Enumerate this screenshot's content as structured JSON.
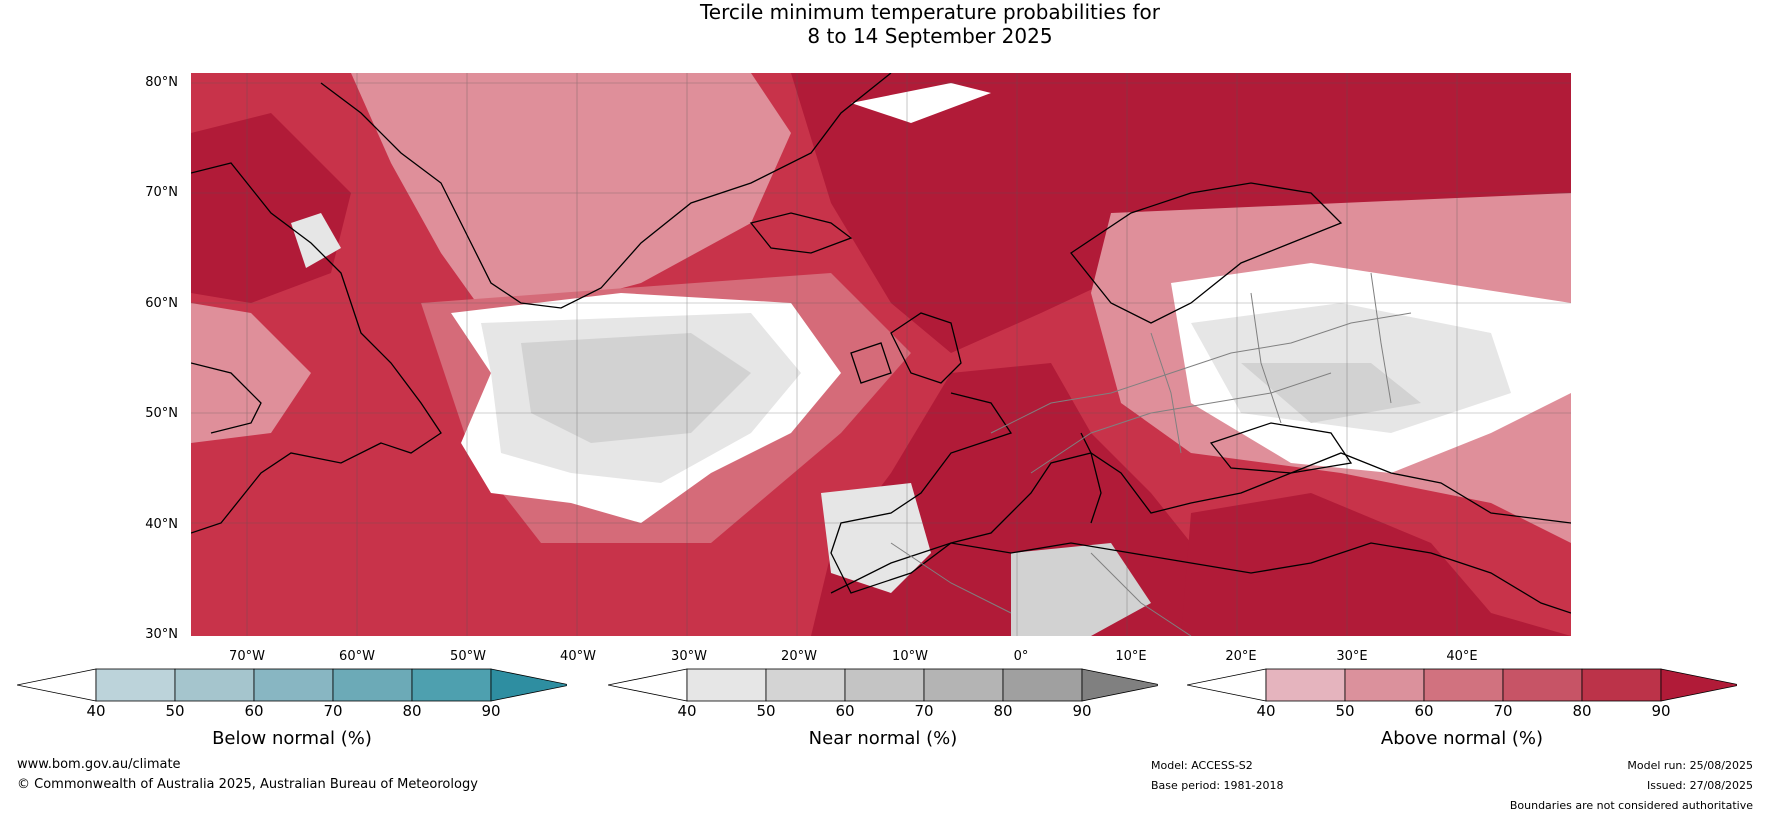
{
  "title": {
    "line1": "Tercile minimum temperature probabilities for",
    "line2": "8 to 14 September 2025"
  },
  "map": {
    "lat_labels": [
      "80°N",
      "70°N",
      "60°N",
      "50°N",
      "40°N",
      "30°N"
    ],
    "lon_labels": [
      "70°W",
      "60°W",
      "50°W",
      "40°W",
      "30°W",
      "20°W",
      "10°W",
      "0°",
      "10°E",
      "20°E",
      "30°E",
      "40°E"
    ],
    "colors": {
      "above_90": "#b11b38",
      "above_80": "#c8334a",
      "above_70": "#d56b79",
      "above_60": "#df8f9a",
      "near_50": "#d2d2d2",
      "near_40": "#e6e6e6",
      "white": "#ffffff",
      "land_grey": "#b4b4b4",
      "coast": "#000000",
      "border": "#808080"
    }
  },
  "colorbars": [
    {
      "name": "below",
      "ticks": [
        "40",
        "50",
        "60",
        "70",
        "80",
        "90"
      ],
      "colors": [
        "#ffffff",
        "#bcd3da",
        "#a5c5cd",
        "#88b6c2",
        "#6caab7",
        "#4ea0af",
        "#2e8ea1"
      ],
      "label": "Below normal (%)"
    },
    {
      "name": "near",
      "ticks": [
        "40",
        "50",
        "60",
        "70",
        "80",
        "90"
      ],
      "colors": [
        "#ffffff",
        "#e6e6e6",
        "#d4d4d4",
        "#c4c4c4",
        "#b4b4b4",
        "#a0a0a0",
        "#808080"
      ],
      "label": "Near normal (%)"
    },
    {
      "name": "above",
      "ticks": [
        "40",
        "50",
        "60",
        "70",
        "80",
        "90"
      ],
      "colors": [
        "#ffffff",
        "#e5b4be",
        "#db919c",
        "#d1727f",
        "#c75466",
        "#bc3349",
        "#b11b38"
      ],
      "label": "Above normal (%)"
    }
  ],
  "footer": {
    "website": "www.bom.gov.au/climate",
    "copyright": "© Commonwealth of Australia 2025, Australian Bureau of Meteorology",
    "model": "Model: ACCESS-S2",
    "base_period": "Base period: 1981-2018",
    "model_run": "Model run: 25/08/2025",
    "issued": "Issued: 27/08/2025",
    "disclaimer": "Boundaries are not considered authoritative"
  }
}
